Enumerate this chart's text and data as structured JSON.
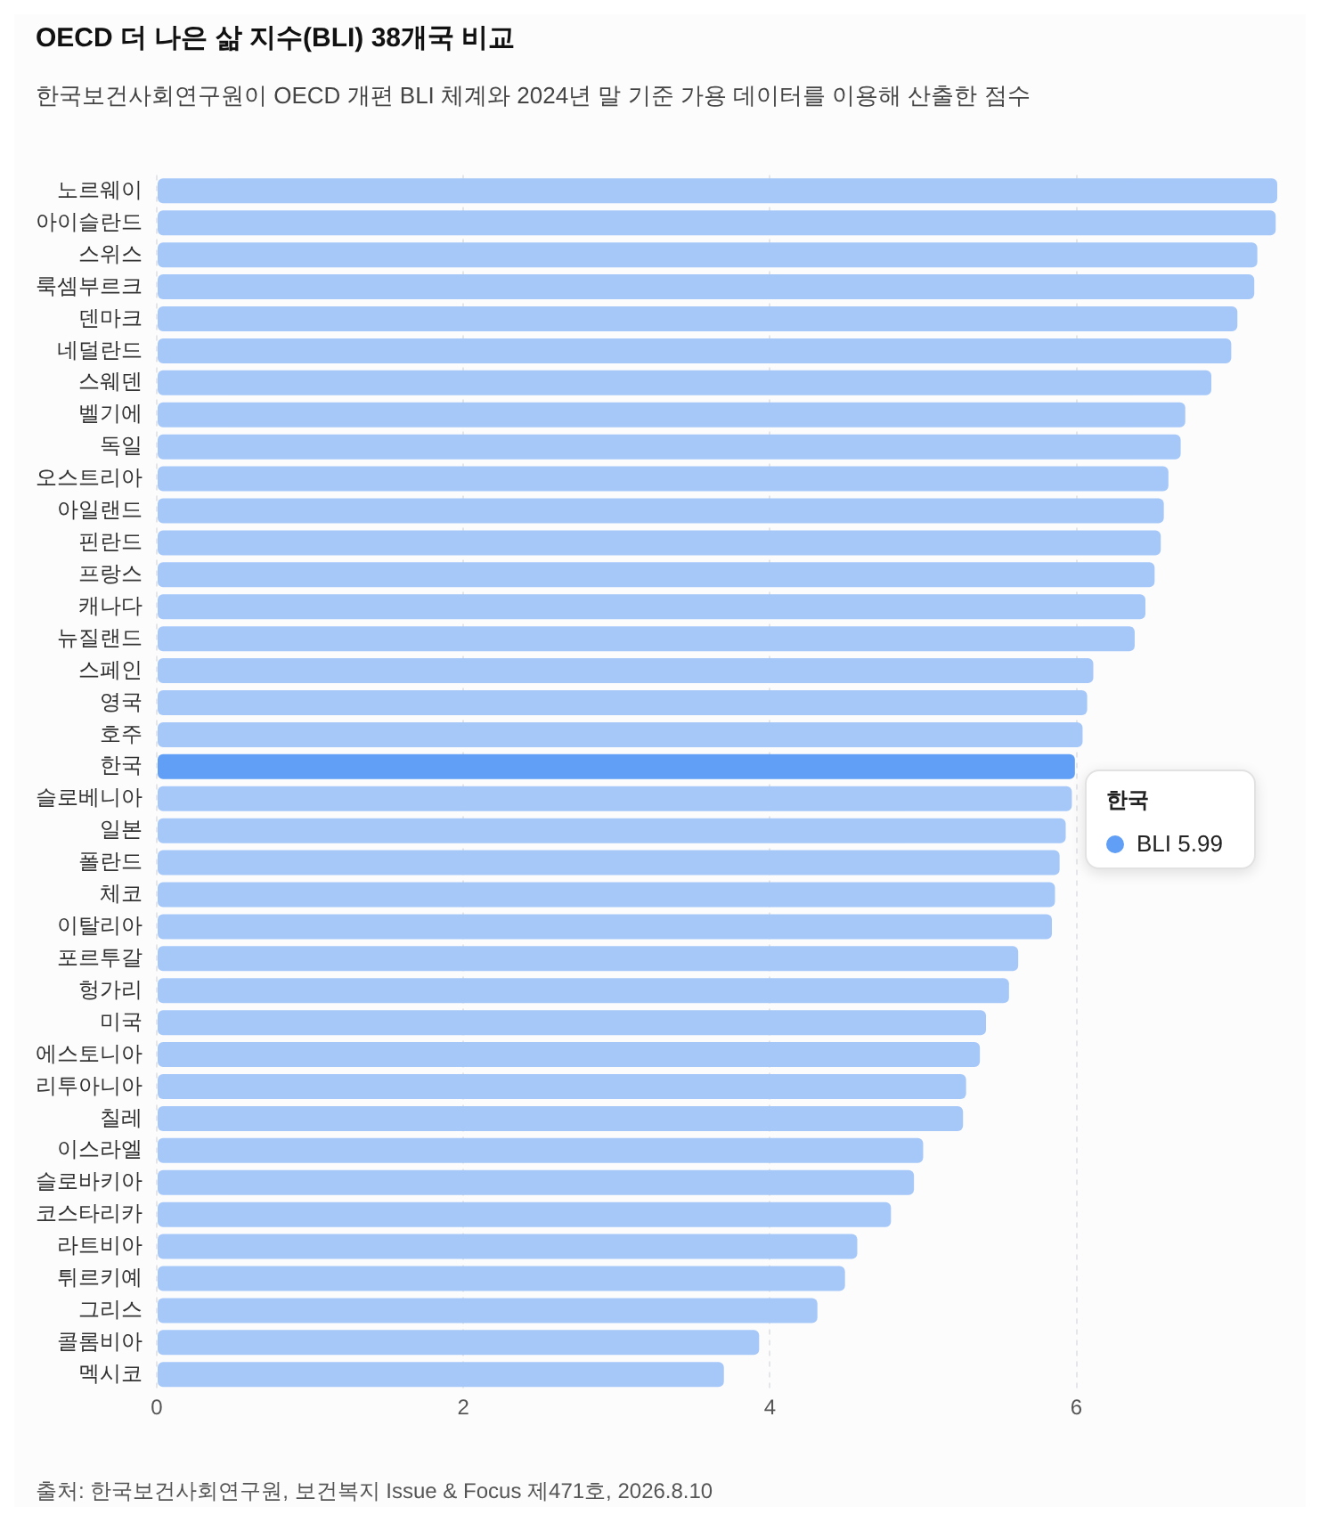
{
  "chart_data": {
    "type": "bar",
    "orientation": "horizontal",
    "title": "OECD 더 나은 삶 지수(BLI) 38개국 비교",
    "subtitle": "한국보건사회연구원이 OECD 개편 BLI 체계와 2024년 말 기준 가용 데이터를 이용해 산출한 점수",
    "categories": [
      "노르웨이",
      "아이슬란드",
      "스위스",
      "룩셈부르크",
      "덴마크",
      "네덜란드",
      "스웨덴",
      "벨기에",
      "독일",
      "오스트리아",
      "아일랜드",
      "핀란드",
      "프랑스",
      "캐나다",
      "뉴질랜드",
      "스페인",
      "영국",
      "호주",
      "한국",
      "슬로베니아",
      "일본",
      "폴란드",
      "체코",
      "이탈리아",
      "포르투갈",
      "헝가리",
      "미국",
      "에스토니아",
      "리투아니아",
      "칠레",
      "이스라엘",
      "슬로바키아",
      "코스타리카",
      "라트비아",
      "튀르키예",
      "그리스",
      "콜롬비아",
      "멕시코"
    ],
    "values": [
      7.31,
      7.3,
      7.18,
      7.16,
      7.05,
      7.01,
      6.88,
      6.71,
      6.68,
      6.6,
      6.57,
      6.55,
      6.51,
      6.45,
      6.38,
      6.11,
      6.07,
      6.04,
      5.99,
      5.97,
      5.93,
      5.89,
      5.86,
      5.84,
      5.62,
      5.56,
      5.41,
      5.37,
      5.28,
      5.26,
      5.0,
      4.94,
      4.79,
      4.57,
      4.49,
      4.31,
      3.93,
      3.7
    ],
    "colors": [
      "#a6c8f9",
      "#a6c8f9",
      "#a6c8f9",
      "#a6c8f9",
      "#a6c8f9",
      "#a6c8f9",
      "#a6c8f9",
      "#a6c8f9",
      "#a6c8f9",
      "#a6c8f9",
      "#a6c8f9",
      "#a6c8f9",
      "#a6c8f9",
      "#a6c8f9",
      "#a6c8f9",
      "#a6c8f9",
      "#a6c8f9",
      "#a6c8f9",
      "#609ff5",
      "#a6c8f9",
      "#a6c8f9",
      "#a6c8f9",
      "#a6c8f9",
      "#a6c8f9",
      "#a6c8f9",
      "#a6c8f9",
      "#a6c8f9",
      "#a6c8f9",
      "#a6c8f9",
      "#a6c8f9",
      "#a6c8f9",
      "#a6c8f9",
      "#a6c8f9",
      "#a6c8f9",
      "#a6c8f9",
      "#a6c8f9",
      "#a6c8f9",
      "#a6c8f9"
    ],
    "xlim": [
      0,
      7.31
    ],
    "xticks": [
      0,
      2,
      4,
      6
    ],
    "grid": "x",
    "legend": false,
    "annotations": [
      "한국",
      "BLI 5.99",
      "출처: 한국보건사회연구원, 보건복지 Issue & Focus 제471호, 2026.8.10"
    ]
  }
}
